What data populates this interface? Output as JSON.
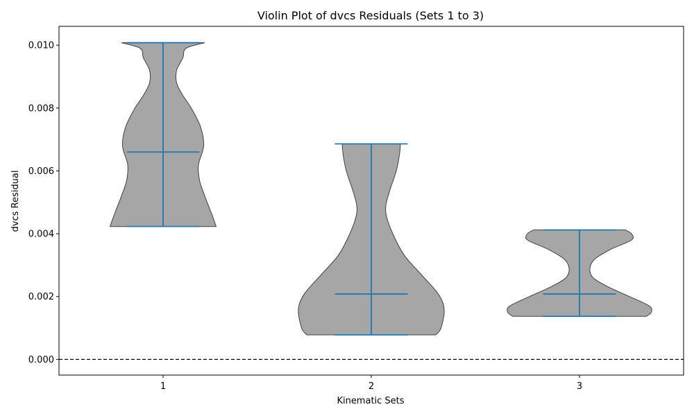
{
  "chart_data": {
    "type": "violin",
    "title": "Violin Plot of dvcs Residuals (Sets 1 to 3)",
    "xlabel": "Kinematic Sets",
    "ylabel": "dvcs Residual",
    "categories": [
      "1",
      "2",
      "3"
    ],
    "xlim": [
      0.5,
      3.5
    ],
    "ylim": [
      -0.0005,
      0.0106
    ],
    "yticks": [
      0.0,
      0.002,
      0.004,
      0.006,
      0.008,
      0.01
    ],
    "ytick_labels": [
      "0.000",
      "0.002",
      "0.004",
      "0.006",
      "0.008",
      "0.010"
    ],
    "reference_line": {
      "y": 0.0,
      "style": "dashed"
    },
    "grid": false,
    "legend": "none",
    "colors": {
      "body": "#a6a6a6",
      "edge": "#404040",
      "stats": "#1f77b4",
      "reference": "#000000"
    },
    "violins": [
      {
        "category": "1",
        "min": 0.00423,
        "median": 0.0066,
        "max": 0.01008,
        "profile": [
          [
            0.00423,
            0.255
          ],
          [
            0.0046,
            0.235
          ],
          [
            0.0052,
            0.2
          ],
          [
            0.0057,
            0.175
          ],
          [
            0.0062,
            0.17
          ],
          [
            0.0068,
            0.195
          ],
          [
            0.0074,
            0.18
          ],
          [
            0.008,
            0.135
          ],
          [
            0.0084,
            0.095
          ],
          [
            0.0088,
            0.065
          ],
          [
            0.0092,
            0.065
          ],
          [
            0.0096,
            0.095
          ],
          [
            0.0099,
            0.11
          ],
          [
            0.01008,
            0.2
          ]
        ]
      },
      {
        "category": "2",
        "min": 0.00078,
        "median": 0.00208,
        "max": 0.00686,
        "profile": [
          [
            0.00078,
            0.31
          ],
          [
            0.001,
            0.335
          ],
          [
            0.0016,
            0.35
          ],
          [
            0.0021,
            0.32
          ],
          [
            0.0027,
            0.24
          ],
          [
            0.0033,
            0.16
          ],
          [
            0.0039,
            0.11
          ],
          [
            0.0045,
            0.075
          ],
          [
            0.0049,
            0.07
          ],
          [
            0.0054,
            0.09
          ],
          [
            0.006,
            0.12
          ],
          [
            0.0065,
            0.135
          ],
          [
            0.00686,
            0.14
          ]
        ]
      },
      {
        "category": "3",
        "min": 0.00137,
        "median": 0.00208,
        "max": 0.00412,
        "profile": [
          [
            0.00137,
            0.32
          ],
          [
            0.0015,
            0.345
          ],
          [
            0.0017,
            0.335
          ],
          [
            0.002,
            0.24
          ],
          [
            0.0023,
            0.14
          ],
          [
            0.0026,
            0.065
          ],
          [
            0.0029,
            0.05
          ],
          [
            0.0032,
            0.075
          ],
          [
            0.0035,
            0.15
          ],
          [
            0.0038,
            0.25
          ],
          [
            0.004,
            0.25
          ],
          [
            0.00412,
            0.22
          ]
        ]
      }
    ]
  }
}
